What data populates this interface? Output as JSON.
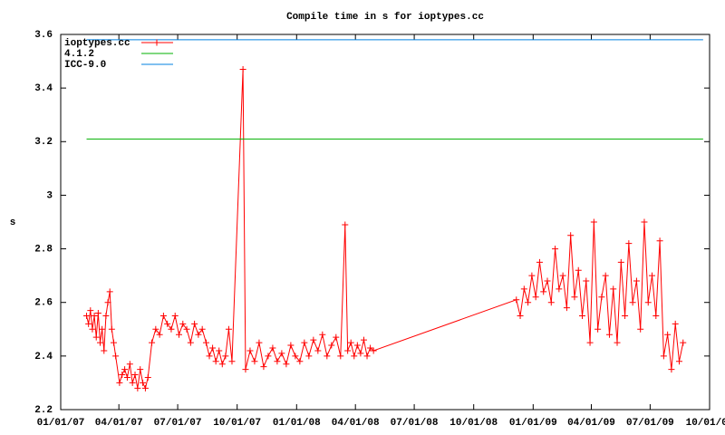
{
  "chart_data": {
    "type": "line",
    "title": "Compile time in s for ioptypes.cc",
    "y_label": "s",
    "xlim": [
      "01/01/07",
      "10/01/09"
    ],
    "xticks": [
      "01/01/07",
      "04/01/07",
      "07/01/07",
      "10/01/07",
      "01/01/08",
      "04/01/08",
      "07/01/08",
      "10/01/08",
      "01/01/09",
      "04/01/09",
      "07/01/09",
      "10/01/09"
    ],
    "ylim": [
      2.2,
      3.6
    ],
    "yticks": [
      2.2,
      2.4,
      2.6,
      2.8,
      3,
      3.2,
      3.4,
      3.6
    ],
    "legend": "top left",
    "series": [
      {
        "name": "ioptypes.cc",
        "color": "#ff0000",
        "marker": "plus",
        "x": [
          "02/10/07",
          "02/13/07",
          "02/16/07",
          "02/19/07",
          "02/22/07",
          "02/25/07",
          "02/28/07",
          "03/03/07",
          "03/06/07",
          "03/09/07",
          "03/12/07",
          "03/15/07",
          "03/18/07",
          "03/21/07",
          "03/24/07",
          "03/27/07",
          "04/02/07",
          "04/06/07",
          "04/10/07",
          "04/14/07",
          "04/18/07",
          "04/22/07",
          "04/26/07",
          "04/30/07",
          "05/04/07",
          "05/08/07",
          "05/12/07",
          "05/16/07",
          "05/22/07",
          "05/28/07",
          "06/03/07",
          "06/09/07",
          "06/15/07",
          "06/21/07",
          "06/27/07",
          "07/03/07",
          "07/09/07",
          "07/15/07",
          "07/21/07",
          "07/27/07",
          "08/02/07",
          "08/08/07",
          "08/14/07",
          "08/19/07",
          "08/24/07",
          "08/29/07",
          "09/03/07",
          "09/08/07",
          "09/13/07",
          "09/18/07",
          "09/23/07",
          "10/10/07",
          "10/14/07",
          "10/21/07",
          "10/28/07",
          "11/04/07",
          "11/11/07",
          "11/18/07",
          "11/25/07",
          "12/02/07",
          "12/09/07",
          "12/16/07",
          "12/23/07",
          "12/30/07",
          "01/06/08",
          "01/13/08",
          "01/20/08",
          "01/27/08",
          "02/03/08",
          "02/10/08",
          "02/17/08",
          "02/24/08",
          "03/02/08",
          "03/09/08",
          "03/16/08",
          "03/20/08",
          "03/25/08",
          "03/30/08",
          "04/04/08",
          "04/09/08",
          "04/14/08",
          "04/19/08",
          "04/24/08",
          "04/29/08",
          "12/06/08",
          "12/12/08",
          "12/18/08",
          "12/24/08",
          "12/30/08",
          "01/05/09",
          "01/11/09",
          "01/17/09",
          "01/23/09",
          "01/29/09",
          "02/04/09",
          "02/10/09",
          "02/16/09",
          "02/22/09",
          "02/28/09",
          "03/06/09",
          "03/12/09",
          "03/18/09",
          "03/24/09",
          "03/30/09",
          "04/05/09",
          "04/11/09",
          "04/17/09",
          "04/23/09",
          "04/29/09",
          "05/05/09",
          "05/11/09",
          "05/17/09",
          "05/23/09",
          "05/29/09",
          "06/04/09",
          "06/10/09",
          "06/16/09",
          "06/22/09",
          "06/28/09",
          "07/04/09",
          "07/10/09",
          "07/16/09",
          "07/22/09",
          "07/28/09",
          "08/03/09",
          "08/09/09",
          "08/15/09",
          "08/21/09"
        ],
        "values": [
          2.55,
          2.52,
          2.57,
          2.5,
          2.55,
          2.47,
          2.56,
          2.45,
          2.5,
          2.42,
          2.55,
          2.6,
          2.64,
          2.5,
          2.45,
          2.4,
          2.3,
          2.33,
          2.35,
          2.32,
          2.37,
          2.3,
          2.33,
          2.28,
          2.35,
          2.3,
          2.28,
          2.32,
          2.45,
          2.5,
          2.48,
          2.55,
          2.52,
          2.5,
          2.55,
          2.48,
          2.52,
          2.5,
          2.45,
          2.52,
          2.48,
          2.5,
          2.45,
          2.4,
          2.43,
          2.38,
          2.42,
          2.37,
          2.4,
          2.5,
          2.38,
          3.47,
          2.35,
          2.42,
          2.38,
          2.45,
          2.36,
          2.4,
          2.43,
          2.38,
          2.41,
          2.37,
          2.44,
          2.4,
          2.38,
          2.45,
          2.4,
          2.46,
          2.42,
          2.48,
          2.4,
          2.44,
          2.47,
          2.4,
          2.89,
          2.42,
          2.45,
          2.4,
          2.44,
          2.41,
          2.46,
          2.4,
          2.43,
          2.42,
          2.61,
          2.55,
          2.65,
          2.6,
          2.7,
          2.62,
          2.75,
          2.64,
          2.68,
          2.6,
          2.8,
          2.65,
          2.7,
          2.58,
          2.85,
          2.62,
          2.72,
          2.55,
          2.68,
          2.45,
          2.9,
          2.5,
          2.62,
          2.7,
          2.48,
          2.65,
          2.45,
          2.75,
          2.55,
          2.82,
          2.6,
          2.68,
          2.5,
          2.9,
          2.6,
          2.7,
          2.55,
          2.83,
          2.4,
          2.48,
          2.35,
          2.52,
          2.38,
          2.45
        ]
      },
      {
        "name": "4.1.2",
        "color": "#00b000",
        "x": [
          "02/10/07",
          "09/21/09"
        ],
        "values": [
          3.21,
          3.21
        ]
      },
      {
        "name": "ICC-9.0",
        "color": "#0080e0",
        "x": [
          "02/10/07",
          "09/21/09"
        ],
        "values": [
          3.58,
          3.58
        ]
      }
    ]
  }
}
